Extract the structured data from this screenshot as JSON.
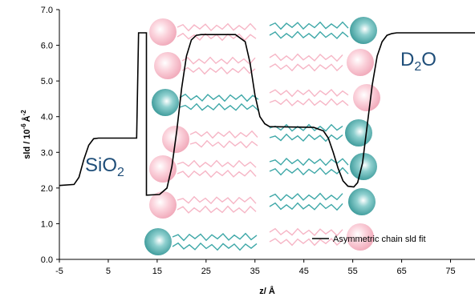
{
  "chart_data": {
    "type": "line",
    "title": "",
    "xlabel": "z/ Å",
    "ylabel_main": "sld / 10",
    "ylabel_exp": "-6",
    "ylabel_unit": "Å",
    "ylabel_unit_exp": "-2",
    "xlim": [
      -5,
      80
    ],
    "ylim": [
      0.0,
      7.0
    ],
    "x_ticks": [
      -5,
      5,
      15,
      25,
      35,
      45,
      55,
      65,
      75
    ],
    "y_ticks": [
      "0.0",
      "1.0",
      "2.0",
      "3.0",
      "4.0",
      "5.0",
      "6.0",
      "7.0"
    ],
    "legend": {
      "position": "bottom-right",
      "label": "Asymmetric chain sld fit"
    },
    "annotations": {
      "sio2": {
        "main": "SiO",
        "sub": "2"
      },
      "d2o": {
        "main": "D",
        "sub": "2",
        "tail": "O"
      }
    },
    "series": [
      {
        "name": "Asymmetric chain sld fit",
        "color": "#000000",
        "points": [
          [
            -5,
            2.07
          ],
          [
            -2,
            2.1
          ],
          [
            -1,
            2.3
          ],
          [
            0,
            2.8
          ],
          [
            1,
            3.2
          ],
          [
            2,
            3.38
          ],
          [
            3,
            3.4
          ],
          [
            10.8,
            3.4
          ],
          [
            11.2,
            6.35
          ],
          [
            12.8,
            6.35
          ],
          [
            12.8,
            1.8
          ],
          [
            15.5,
            1.82
          ],
          [
            17,
            2.0
          ],
          [
            18,
            2.6
          ],
          [
            19,
            3.6
          ],
          [
            20,
            4.8
          ],
          [
            21,
            5.7
          ],
          [
            22,
            6.15
          ],
          [
            23,
            6.28
          ],
          [
            24,
            6.3
          ],
          [
            31,
            6.3
          ],
          [
            33,
            6.1
          ],
          [
            34,
            5.5
          ],
          [
            35,
            4.6
          ],
          [
            36,
            4.0
          ],
          [
            37,
            3.8
          ],
          [
            38,
            3.72
          ],
          [
            47,
            3.7
          ],
          [
            49,
            3.6
          ],
          [
            50,
            3.4
          ],
          [
            51,
            3.0
          ],
          [
            52,
            2.55
          ],
          [
            53,
            2.2
          ],
          [
            54,
            2.05
          ],
          [
            55.2,
            2.03
          ],
          [
            56,
            2.15
          ],
          [
            57,
            2.7
          ],
          [
            58,
            3.8
          ],
          [
            59,
            4.9
          ],
          [
            60,
            5.7
          ],
          [
            61,
            6.1
          ],
          [
            62,
            6.28
          ],
          [
            63,
            6.33
          ],
          [
            64,
            6.35
          ],
          [
            80,
            6.35
          ]
        ]
      }
    ],
    "illustration": {
      "pink_color": "#f6b6c6",
      "teal_color": "#3fa8a8",
      "left_leaflet": [
        "pink",
        "pink",
        "teal",
        "pink",
        "pink",
        "pink",
        "teal"
      ],
      "right_leaflet": [
        "teal",
        "pink",
        "pink",
        "teal",
        "teal",
        "teal",
        "pink"
      ]
    }
  }
}
